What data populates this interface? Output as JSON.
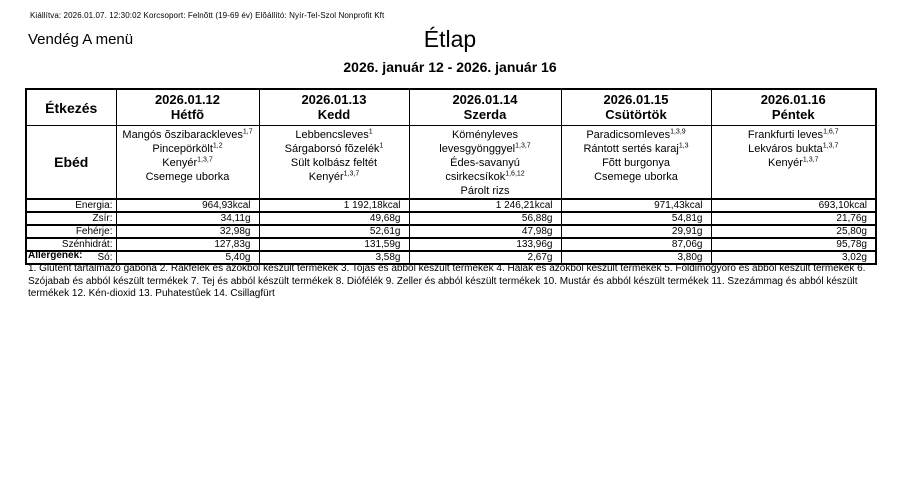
{
  "meta_line": "Kiállítva: 2026.01.07. 12:30:02 Korcsoport: Felnõtt (19-69 év) Elõállító: Nyír-Tel-Szol Nonprofit Kft",
  "menu_name": "Vendég A menü",
  "title": "Étlap",
  "date_range": "2026. január 12 - 2026. január 16",
  "table": {
    "header": {
      "meal_col": "Étkezés",
      "days": [
        {
          "date": "2026.01.12",
          "day": "Hétfõ"
        },
        {
          "date": "2026.01.13",
          "day": "Kedd"
        },
        {
          "date": "2026.01.14",
          "day": "Szerda"
        },
        {
          "date": "2026.01.15",
          "day": "Csütörtök"
        },
        {
          "date": "2026.01.16",
          "day": "Péntek"
        }
      ]
    },
    "meal_row": {
      "label": "Ebéd",
      "day_menus": [
        [
          {
            "name": "Mangós õszibarackleves",
            "allergens": "1,7"
          },
          {
            "name": "Pincepörkölt",
            "allergens": "1,2"
          },
          {
            "name": "Kenyér",
            "allergens": "1,3,7"
          },
          {
            "name": "Csemege uborka",
            "allergens": ""
          }
        ],
        [
          {
            "name": "Lebbencsleves",
            "allergens": "1"
          },
          {
            "name": "Sárgaborsó fõzelék",
            "allergens": "1"
          },
          {
            "name": "Sült kolbász feltét",
            "allergens": ""
          },
          {
            "name": "Kenyér",
            "allergens": "1,3,7"
          }
        ],
        [
          {
            "name": "Köményleves levesgyönggyel",
            "allergens": "1,3,7"
          },
          {
            "name": "Édes-savanyú csirkecsíkok",
            "allergens": "1,6,12"
          },
          {
            "name": "Párolt rizs",
            "allergens": ""
          }
        ],
        [
          {
            "name": "Paradicsomleves",
            "allergens": "1,3,9"
          },
          {
            "name": "Rántott sertés karaj",
            "allergens": "1,3"
          },
          {
            "name": "Fõtt burgonya",
            "allergens": ""
          },
          {
            "name": "Csemege uborka",
            "allergens": ""
          }
        ],
        [
          {
            "name": "Frankfurti leves",
            "allergens": "1,6,7"
          },
          {
            "name": "Lekváros bukta",
            "allergens": "1,3,7"
          },
          {
            "name": "Kenyér",
            "allergens": "1,3,7"
          }
        ]
      ]
    },
    "nutrition_rows": [
      {
        "label": "Energia:",
        "values": [
          "964,93kcal",
          "1 192,18kcal",
          "1 246,21kcal",
          "971,43kcal",
          "693,10kcal"
        ]
      },
      {
        "label": "Zsír:",
        "values": [
          "34,11g",
          "49,68g",
          "56,88g",
          "54,81g",
          "21,76g"
        ]
      },
      {
        "label": "Fehérje:",
        "values": [
          "32,98g",
          "52,61g",
          "47,98g",
          "29,91g",
          "25,80g"
        ]
      },
      {
        "label": "Szénhidrát:",
        "values": [
          "127,83g",
          "131,59g",
          "133,96g",
          "87,06g",
          "95,78g"
        ]
      },
      {
        "label": "Só:",
        "values": [
          "5,40g",
          "3,58g",
          "2,67g",
          "3,80g",
          "3,02g"
        ]
      }
    ]
  },
  "allergens": {
    "heading": "Allergének:",
    "text": "1. Glutént tartalmazó gabona 2. Rákfélék és azokból készült termékek 3. Tojás és abból készült termékek 4. Halak és azokból készült termékek 5. Földimogyoró és abból készült termékek 6. Szójabab és abból készült termékek 7. Tej és abból készült termékek 8. Diófélék 9. Zeller és abból készült termékek 10. Mustár és abból készült termékek 11. Szezámmag és abból készült termékek 12. Kén-dioxid 13. Puhatestûek 14. Csillagfürt"
  }
}
